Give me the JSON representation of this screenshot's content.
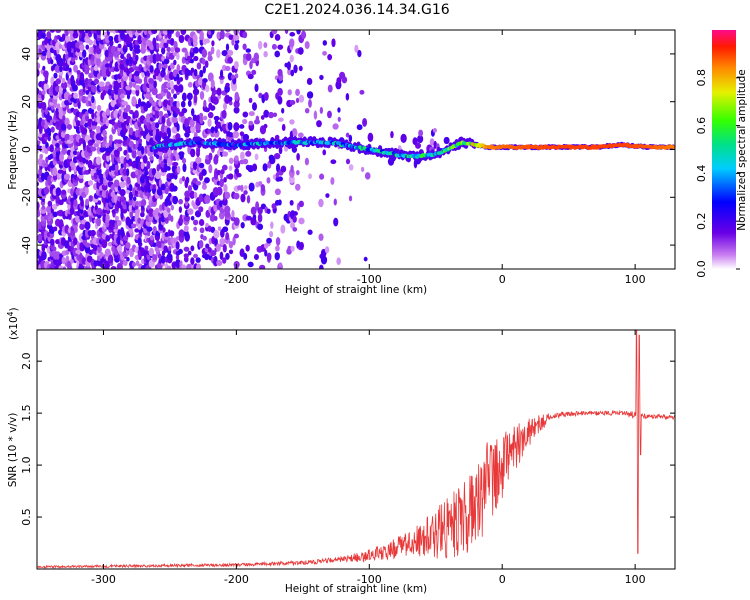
{
  "title": "C2E1.2024.036.14.34.G16",
  "chart_data": [
    {
      "type": "heatmap",
      "xlabel": "Height of straight line (km)",
      "ylabel": "Frequency (Hz)",
      "xlim": [
        -350,
        130
      ],
      "ylim": [
        -50,
        50
      ],
      "xticks": [
        -300,
        -200,
        -100,
        0,
        100
      ],
      "yticks": [
        -40,
        -20,
        0,
        20,
        40
      ],
      "colorbar": {
        "label": "Normalized spectral amplitude",
        "range": [
          0,
          1
        ],
        "ticks": [
          "0.0",
          "0.2",
          "0.4",
          "0.6",
          "0.8"
        ]
      },
      "trace": [
        {
          "x": -262,
          "y": 1,
          "amp": 0.35
        },
        {
          "x": -250,
          "y": 2,
          "amp": 0.3
        },
        {
          "x": -230,
          "y": 3,
          "amp": 0.3
        },
        {
          "x": -200,
          "y": 2,
          "amp": 0.32
        },
        {
          "x": -160,
          "y": 3,
          "amp": 0.35
        },
        {
          "x": -130,
          "y": 3,
          "amp": 0.38
        },
        {
          "x": -110,
          "y": 1,
          "amp": 0.4
        },
        {
          "x": -90,
          "y": -1,
          "amp": 0.42
        },
        {
          "x": -70,
          "y": -3,
          "amp": 0.45
        },
        {
          "x": -50,
          "y": -2,
          "amp": 0.5
        },
        {
          "x": -30,
          "y": 3,
          "amp": 0.55
        },
        {
          "x": -10,
          "y": 1,
          "amp": 0.85
        },
        {
          "x": 10,
          "y": 1,
          "amp": 0.88
        },
        {
          "x": 40,
          "y": 1,
          "amp": 0.9
        },
        {
          "x": 70,
          "y": 1,
          "amp": 0.9
        },
        {
          "x": 90,
          "y": 2,
          "amp": 0.9
        },
        {
          "x": 110,
          "y": 1,
          "amp": 0.88
        },
        {
          "x": 130,
          "y": 1,
          "amp": 0.85
        }
      ]
    },
    {
      "type": "line",
      "xlabel": "Height of straight line (km)",
      "ylabel": "SNR (10 * v/v)",
      "yscale_label": "(x10",
      "yscale_exp": "4",
      "xlim": [
        -350,
        130
      ],
      "ylim": [
        0,
        2.3
      ],
      "xticks": [
        -300,
        -200,
        -100,
        0,
        100
      ],
      "yticks": [
        "0.5",
        "1.0",
        "1.5",
        "2.0"
      ],
      "color": "#e8393a",
      "envelope": [
        {
          "x": -350,
          "mean": 0.02,
          "amp": 0.01
        },
        {
          "x": -200,
          "mean": 0.04,
          "amp": 0.015
        },
        {
          "x": -150,
          "mean": 0.06,
          "amp": 0.02
        },
        {
          "x": -120,
          "mean": 0.09,
          "amp": 0.03
        },
        {
          "x": -100,
          "mean": 0.13,
          "amp": 0.06
        },
        {
          "x": -80,
          "mean": 0.2,
          "amp": 0.1
        },
        {
          "x": -60,
          "mean": 0.28,
          "amp": 0.18
        },
        {
          "x": -40,
          "mean": 0.4,
          "amp": 0.3
        },
        {
          "x": -25,
          "mean": 0.55,
          "amp": 0.4
        },
        {
          "x": -15,
          "mean": 0.75,
          "amp": 0.45
        },
        {
          "x": -5,
          "mean": 0.95,
          "amp": 0.4
        },
        {
          "x": 5,
          "mean": 1.1,
          "amp": 0.3
        },
        {
          "x": 15,
          "mean": 1.25,
          "amp": 0.18
        },
        {
          "x": 25,
          "mean": 1.38,
          "amp": 0.1
        },
        {
          "x": 40,
          "mean": 1.48,
          "amp": 0.03
        },
        {
          "x": 60,
          "mean": 1.5,
          "amp": 0.02
        },
        {
          "x": 90,
          "mean": 1.5,
          "amp": 0.02
        },
        {
          "x": 98,
          "mean": 1.48,
          "amp": 0.04
        },
        {
          "x": 110,
          "mean": 1.47,
          "amp": 0.02
        },
        {
          "x": 130,
          "mean": 1.46,
          "amp": 0.02
        }
      ],
      "spikes": [
        {
          "x": 101,
          "y": 2.3
        },
        {
          "x": 102,
          "y": 0.15
        },
        {
          "x": 103,
          "y": 2.25
        },
        {
          "x": 104,
          "y": 1.1
        }
      ]
    }
  ]
}
